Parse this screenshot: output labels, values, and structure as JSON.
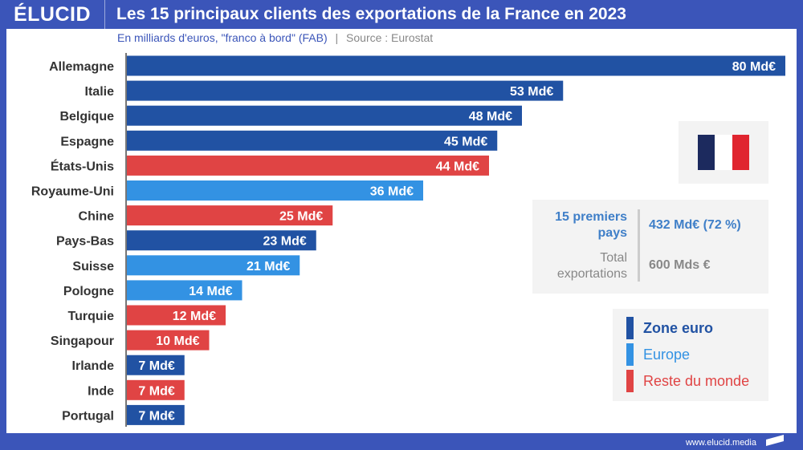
{
  "header": {
    "logo": "ÉLUCID",
    "title": "Les 15 principaux clients des exportations de la France en 2023"
  },
  "subtitle": {
    "unit": "En milliards d'euros, \"franco à bord\" (FAB)",
    "separator": "|",
    "source": "Source : Eurostat"
  },
  "colors": {
    "frame": "#3b55b9",
    "zone_euro": "#2152a3",
    "europe": "#3392e3",
    "reste_du_monde": "#e04444",
    "flag_blue": "#1c2a5e",
    "flag_red": "#e0252f"
  },
  "chart_data": {
    "type": "bar",
    "orientation": "horizontal",
    "categories": [
      "Allemagne",
      "Italie",
      "Belgique",
      "Espagne",
      "États-Unis",
      "Royaume-Uni",
      "Chine",
      "Pays-Bas",
      "Suisse",
      "Pologne",
      "Turquie",
      "Singapour",
      "Irlande",
      "Inde",
      "Portugal"
    ],
    "values": [
      80,
      53,
      48,
      45,
      44,
      36,
      25,
      23,
      21,
      14,
      12,
      10,
      7,
      7,
      7
    ],
    "groups": [
      "zone_euro",
      "zone_euro",
      "zone_euro",
      "zone_euro",
      "reste_du_monde",
      "europe",
      "reste_du_monde",
      "zone_euro",
      "europe",
      "europe",
      "reste_du_monde",
      "reste_du_monde",
      "zone_euro",
      "reste_du_monde",
      "zone_euro"
    ],
    "labels": [
      "80 Md€",
      "53 Md€",
      "48 Md€",
      "45 Md€",
      "44 Md€",
      "36 Md€",
      "25 Md€",
      "23 Md€",
      "21 Md€",
      "14 Md€",
      "12 Md€",
      "10 Md€",
      "7 Md€",
      "7 Md€",
      "7 Md€"
    ],
    "xlim": [
      0,
      80
    ],
    "grid": false,
    "legend_position": "bottom-right"
  },
  "stats": {
    "top15_label": "15 premiers pays",
    "top15_value": "432 Md€ (72 %)",
    "total_label": "Total exportations",
    "total_value": "600 Mds €"
  },
  "legend": [
    {
      "label": "Zone euro",
      "key": "zone_euro"
    },
    {
      "label": "Europe",
      "key": "europe"
    },
    {
      "label": "Reste du monde",
      "key": "reste_du_monde"
    }
  ],
  "footer": {
    "url": "www.elucid.media"
  }
}
